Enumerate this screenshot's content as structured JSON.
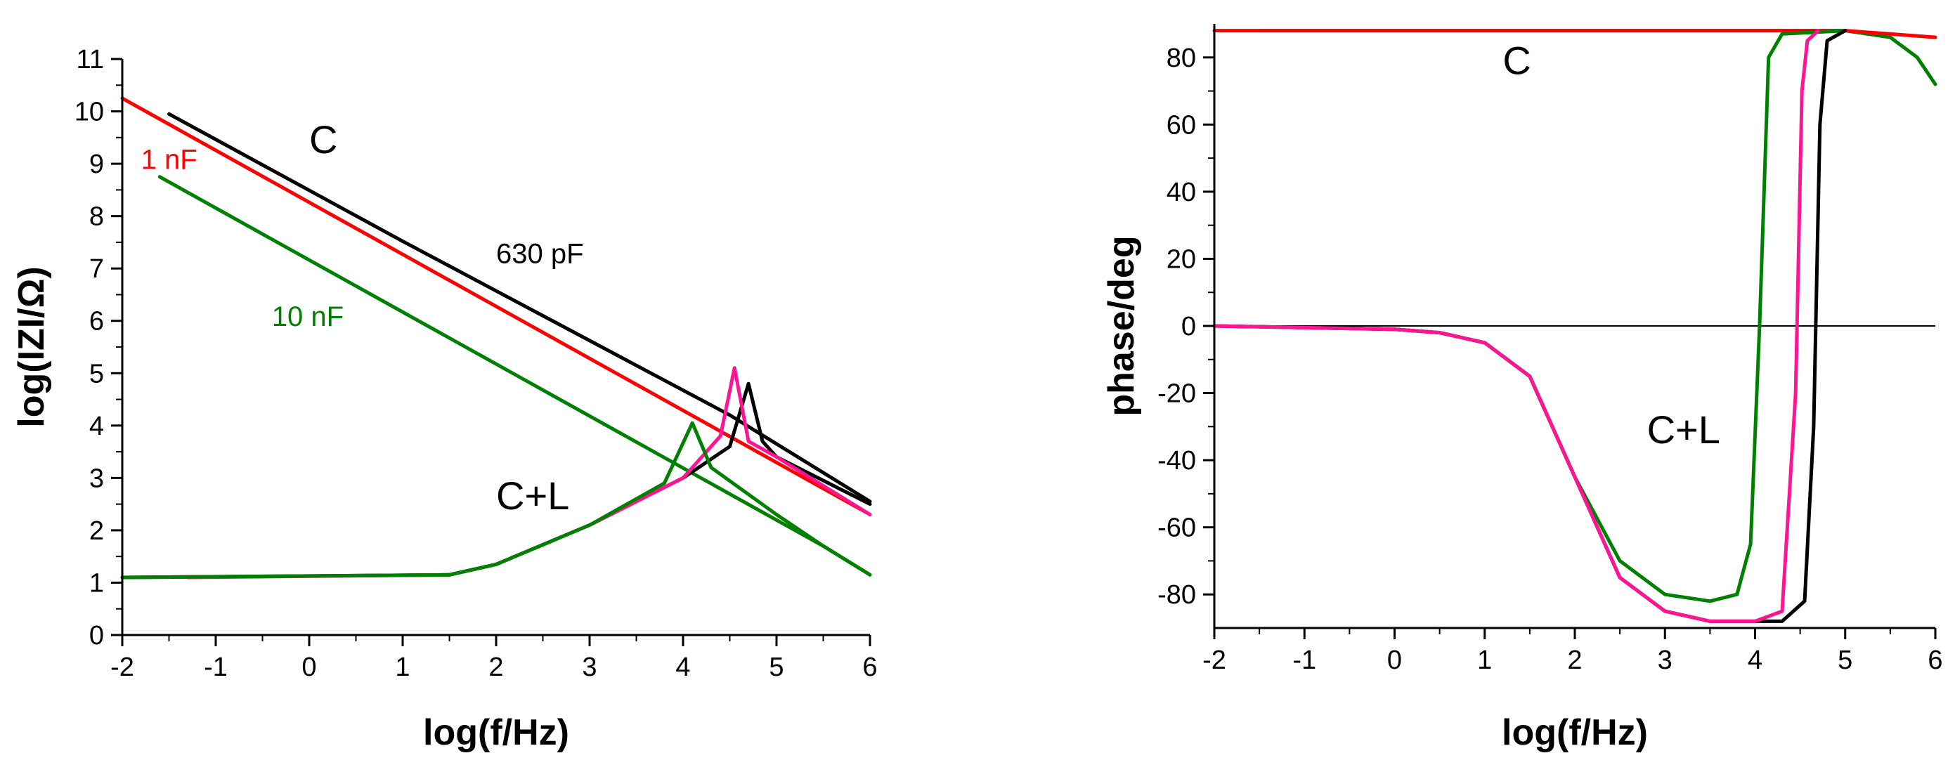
{
  "chart_data": [
    {
      "type": "line",
      "xlabel": "log(f/Hz)",
      "ylabel": "log(IZI/Ω)",
      "xlim": [
        -2,
        6
      ],
      "ylim": [
        0,
        11
      ],
      "xticks": [
        "-2",
        "-1",
        "0",
        "1",
        "2",
        "3",
        "4",
        "5",
        "6"
      ],
      "yticks": [
        "0",
        "1",
        "2",
        "3",
        "4",
        "5",
        "6",
        "7",
        "8",
        "9",
        "10",
        "11"
      ],
      "grid": false,
      "annotations": [
        {
          "text": "C",
          "x": 0,
          "y": 9.2,
          "size": "large",
          "color": "#000000"
        },
        {
          "text": "1 nF",
          "x": -1.8,
          "y": 8.9,
          "size": "small",
          "color": "#ff0000"
        },
        {
          "text": "630 pF",
          "x": 2.0,
          "y": 7.1,
          "size": "small",
          "color": "#000000"
        },
        {
          "text": "10 nF",
          "x": -0.4,
          "y": 5.9,
          "size": "small",
          "color": "#008000"
        },
        {
          "text": "C+L",
          "x": 2.0,
          "y": 2.4,
          "size": "large",
          "color": "#000000"
        }
      ],
      "series": [
        {
          "color": "#000000",
          "x": [
            -1.5,
            1,
            4.5,
            6
          ],
          "y": [
            9.95,
            7.52,
            4.2,
            2.55
          ]
        },
        {
          "color": "#ff0000",
          "x": [
            -2,
            6
          ],
          "y": [
            10.25,
            2.3
          ]
        },
        {
          "color": "#008000",
          "x": [
            -1.6,
            5.5,
            6
          ],
          "y": [
            8.75,
            1.7,
            1.15
          ]
        },
        {
          "color": "#000000",
          "x": [
            -2,
            1.5,
            2,
            3,
            4,
            4.5,
            4.7,
            4.85,
            5,
            6
          ],
          "y": [
            1.1,
            1.15,
            1.35,
            2.1,
            3.0,
            3.6,
            4.8,
            3.7,
            3.4,
            2.5
          ]
        },
        {
          "color": "#ff1493",
          "x": [
            -1.3,
            1.5,
            2,
            3,
            4,
            4.4,
            4.55,
            4.7,
            5,
            6
          ],
          "y": [
            1.1,
            1.15,
            1.35,
            2.1,
            3.0,
            3.8,
            5.1,
            3.7,
            3.4,
            2.3
          ]
        },
        {
          "color": "#008000",
          "x": [
            -2,
            1.5,
            2,
            3,
            3.8,
            4.1,
            4.3,
            5,
            5.5,
            6
          ],
          "y": [
            1.1,
            1.15,
            1.35,
            2.1,
            2.9,
            4.05,
            3.2,
            2.3,
            1.7,
            1.15
          ]
        }
      ]
    },
    {
      "type": "line",
      "xlabel": "log(f/Hz)",
      "ylabel": "phase/deg",
      "xlim": [
        -2,
        6
      ],
      "ylim": [
        -90,
        90
      ],
      "xticks": [
        "-2",
        "-1",
        "0",
        "1",
        "2",
        "3",
        "4",
        "5",
        "6"
      ],
      "yticks": [
        "-80",
        "-60",
        "-40",
        "-20",
        "0",
        "20",
        "40",
        "60",
        "80"
      ],
      "grid": false,
      "reference_line": 0,
      "annotations": [
        {
          "text": "C",
          "x": 1.2,
          "y": 75,
          "size": "large",
          "color": "#000000"
        },
        {
          "text": "C+L",
          "x": 2.8,
          "y": -35,
          "size": "large",
          "color": "#000000"
        }
      ],
      "series": [
        {
          "color": "#008000",
          "x": [
            -1.5,
            5,
            5.5,
            5.8,
            6
          ],
          "y": [
            88,
            88,
            86,
            80,
            72
          ]
        },
        {
          "color": "#ff0000",
          "x": [
            -2,
            5.0,
            6
          ],
          "y": [
            88,
            88,
            86
          ]
        },
        {
          "color": "#008000",
          "x": [
            -2,
            0,
            0.5,
            1,
            1.5,
            2,
            2.5,
            3,
            3.5,
            3.8,
            3.95,
            4.05,
            4.15,
            4.3,
            5
          ],
          "y": [
            0,
            -1,
            -2,
            -5,
            -15,
            -45,
            -70,
            -80,
            -82,
            -80,
            -65,
            0,
            80,
            87,
            88
          ]
        },
        {
          "color": "#000000",
          "x": [
            -2,
            0,
            0.5,
            1,
            1.5,
            2,
            2.5,
            3,
            3.5,
            4.3,
            4.55,
            4.65,
            4.72,
            4.8,
            5
          ],
          "y": [
            0,
            -1,
            -2,
            -5,
            -15,
            -45,
            -75,
            -85,
            -88,
            -88,
            -82,
            -30,
            60,
            85,
            88
          ]
        },
        {
          "color": "#ff1493",
          "x": [
            -2,
            0,
            0.5,
            1,
            1.5,
            2,
            2.5,
            3,
            3.5,
            4.0,
            4.3,
            4.45,
            4.52,
            4.58,
            4.7
          ],
          "y": [
            0,
            -1,
            -2,
            -5,
            -15,
            -45,
            -75,
            -85,
            -88,
            -88,
            -85,
            -20,
            70,
            85,
            88
          ]
        }
      ]
    }
  ]
}
